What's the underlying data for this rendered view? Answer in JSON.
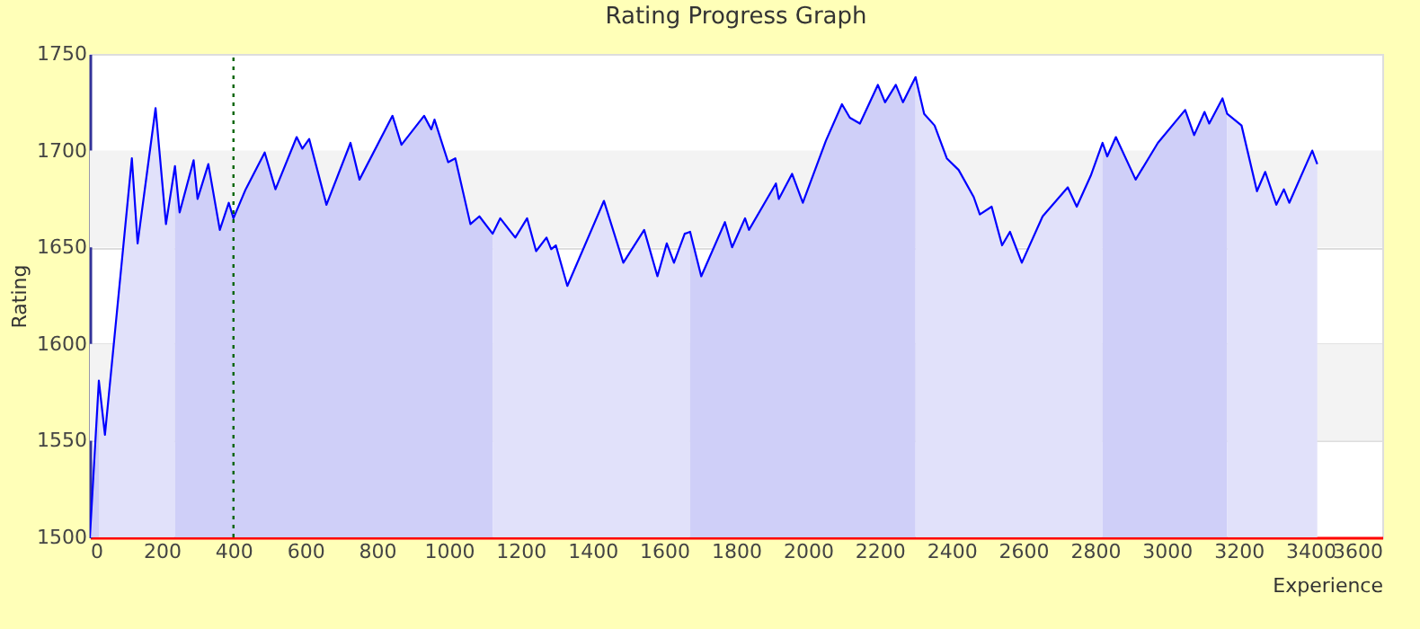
{
  "chart_data": {
    "type": "line",
    "title": "Rating Progress Graph",
    "xlabel": "Experience",
    "ylabel": "Rating",
    "xlim": [
      0,
      3600
    ],
    "xticks": [
      0,
      200,
      400,
      600,
      800,
      1000,
      1200,
      1400,
      1600,
      1800,
      2000,
      2200,
      2400,
      2600,
      2800,
      3000,
      3200,
      3400,
      3600
    ],
    "ylim": [
      1500,
      1750
    ],
    "yticks": [
      1500,
      1550,
      1600,
      1650,
      1700,
      1750
    ],
    "grid": "y",
    "bands": [
      {
        "axis": "y",
        "from": 1550,
        "to": 1600,
        "color": "#f3f3f3"
      },
      {
        "axis": "y",
        "from": 1650,
        "to": 1700,
        "color": "#f3f3f3"
      }
    ],
    "ref_lines": [
      {
        "axis": "x",
        "value": 400,
        "color": "#006400",
        "line_style": "dotted"
      }
    ],
    "series": [
      {
        "type": "area",
        "color": "#cfcff8",
        "x": [
          0,
          25
        ],
        "values": [
          1500,
          1581
        ]
      },
      {
        "type": "area",
        "color": "#e1e1fa",
        "x": [
          25,
          42,
          117,
          133,
          183,
          212,
          237
        ],
        "values": [
          1581,
          1553,
          1696,
          1652,
          1722,
          1662,
          1692
        ]
      },
      {
        "type": "area",
        "color": "#cfcff8",
        "x": [
          237,
          250,
          289,
          300,
          330,
          362,
          387,
          400,
          434,
          487,
          517,
          576,
          592,
          611,
          659,
          726,
          751,
          843,
          868,
          931,
          951,
          960,
          998,
          1018,
          1060,
          1085,
          1122
        ],
        "values": [
          1692,
          1668,
          1695,
          1675,
          1693,
          1659,
          1673,
          1665,
          1680,
          1699,
          1680,
          1707,
          1701,
          1706,
          1672,
          1704,
          1685,
          1718,
          1703,
          1718,
          1711,
          1716,
          1694,
          1696,
          1662,
          1666,
          1657
        ]
      },
      {
        "type": "area",
        "color": "#e1e1fa",
        "x": [
          1122,
          1143,
          1185,
          1218,
          1243,
          1272,
          1285,
          1298,
          1330,
          1432,
          1486,
          1544,
          1581,
          1607,
          1627,
          1657,
          1672
        ],
        "values": [
          1657,
          1665,
          1655,
          1665,
          1648,
          1655,
          1649,
          1651,
          1630,
          1674,
          1642,
          1659,
          1635,
          1652,
          1642,
          1657,
          1658
        ]
      },
      {
        "type": "area",
        "color": "#cfcff8",
        "x": [
          1672,
          1703,
          1769,
          1789,
          1825,
          1836,
          1911,
          1919,
          1956,
          1986,
          2050,
          2095,
          2117,
          2145,
          2195,
          2215,
          2245,
          2265,
          2300
        ],
        "values": [
          1658,
          1635,
          1663,
          1650,
          1665,
          1659,
          1683,
          1675,
          1688,
          1673,
          1705,
          1724,
          1717,
          1714,
          1734,
          1725,
          1734,
          1725,
          1738
        ]
      },
      {
        "type": "area",
        "color": "#e1e1fa",
        "x": [
          2300,
          2324,
          2353,
          2387,
          2420,
          2462,
          2479,
          2512,
          2541,
          2563,
          2596,
          2654,
          2724,
          2749,
          2788,
          2821
        ],
        "values": [
          1738,
          1719,
          1713,
          1696,
          1690,
          1676,
          1667,
          1671,
          1651,
          1658,
          1642,
          1666,
          1681,
          1671,
          1687,
          1704
        ]
      },
      {
        "type": "area",
        "color": "#cfcff8",
        "x": [
          2821,
          2834,
          2858,
          2913,
          2975,
          3051,
          3076,
          3105,
          3118,
          3155,
          3168
        ],
        "values": [
          1704,
          1697,
          1707,
          1685,
          1704,
          1721,
          1708,
          1720,
          1714,
          1727,
          1719
        ]
      },
      {
        "type": "area",
        "color": "#e1e1fa",
        "x": [
          3168,
          3208,
          3251,
          3274,
          3305,
          3326,
          3341,
          3405,
          3419
        ],
        "values": [
          1719,
          1713,
          1679,
          1689,
          1672,
          1680,
          1673,
          1700,
          1693
        ]
      },
      {
        "color": "#0000ff",
        "x": [
          0,
          25,
          42,
          117,
          133,
          183,
          212,
          237,
          250,
          289,
          300,
          330,
          362,
          387,
          400,
          434,
          487,
          517,
          576,
          592,
          611,
          659,
          726,
          751,
          843,
          868,
          931,
          951,
          960,
          998,
          1018,
          1060,
          1085,
          1122,
          1143,
          1185,
          1218,
          1243,
          1272,
          1285,
          1298,
          1330,
          1432,
          1486,
          1544,
          1581,
          1607,
          1627,
          1657,
          1672,
          1703,
          1769,
          1789,
          1825,
          1836,
          1911,
          1919,
          1956,
          1986,
          2050,
          2095,
          2117,
          2145,
          2195,
          2215,
          2245,
          2265,
          2300,
          2324,
          2353,
          2387,
          2420,
          2462,
          2479,
          2512,
          2541,
          2563,
          2596,
          2654,
          2724,
          2749,
          2788,
          2821,
          2834,
          2858,
          2913,
          2975,
          3051,
          3076,
          3105,
          3118,
          3155,
          3168,
          3208,
          3251,
          3274,
          3305,
          3326,
          3341,
          3405,
          3419
        ],
        "values": [
          1500,
          1581,
          1553,
          1696,
          1652,
          1722,
          1662,
          1692,
          1668,
          1695,
          1675,
          1693,
          1659,
          1673,
          1665,
          1680,
          1699,
          1680,
          1707,
          1701,
          1706,
          1672,
          1704,
          1685,
          1718,
          1703,
          1718,
          1711,
          1716,
          1694,
          1696,
          1662,
          1666,
          1657,
          1665,
          1655,
          1665,
          1648,
          1655,
          1649,
          1651,
          1630,
          1674,
          1642,
          1659,
          1635,
          1652,
          1642,
          1657,
          1658,
          1635,
          1663,
          1650,
          1665,
          1659,
          1683,
          1675,
          1688,
          1673,
          1705,
          1724,
          1717,
          1714,
          1734,
          1725,
          1734,
          1725,
          1738,
          1719,
          1713,
          1696,
          1690,
          1676,
          1667,
          1671,
          1651,
          1658,
          1642,
          1666,
          1681,
          1671,
          1687,
          1704,
          1697,
          1707,
          1685,
          1704,
          1721,
          1708,
          1720,
          1714,
          1727,
          1719,
          1713,
          1679,
          1689,
          1672,
          1680,
          1673,
          1700,
          1693
        ]
      }
    ]
  }
}
